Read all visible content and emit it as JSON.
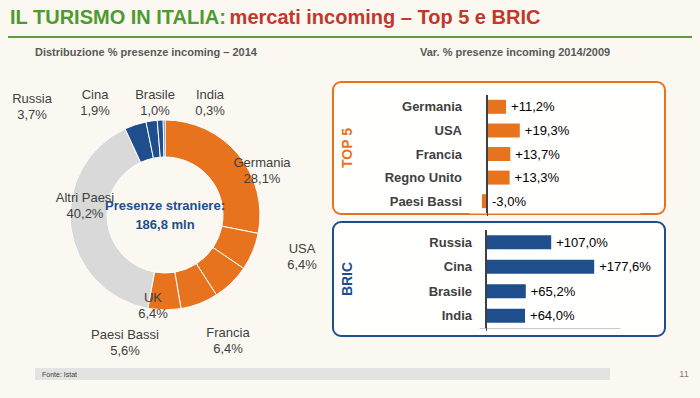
{
  "title": "IL TURISMO IN ITALIA:",
  "subtitle": "mercati incoming – Top 5 e BRIC",
  "source": "Fonte: Istat",
  "page_number": 11,
  "chart_data": [
    {
      "type": "pie",
      "title": "Distribuzione % presenze incoming – 2014",
      "center_label": [
        "Presenze straniere:",
        "186,8 mln"
      ],
      "categories": [
        "Germania",
        "USA",
        "Francia",
        "UK",
        "Paesi Bassi",
        "Altri Paesi",
        "Russia",
        "Cina",
        "Brasile",
        "India"
      ],
      "values": [
        28.1,
        6.4,
        6.4,
        6.4,
        5.6,
        40.2,
        3.7,
        1.9,
        1.0,
        0.3
      ],
      "value_labels": [
        "28,1%",
        "6,4%",
        "6,4%",
        "6,4%",
        "5,6%",
        "40,2%",
        "3,7%",
        "1,9%",
        "1,0%",
        "0,3%"
      ],
      "colors": [
        "#E8731F",
        "#E8731F",
        "#E8731F",
        "#E8731F",
        "#E8731F",
        "#D9D9D9",
        "#1F4E8C",
        "#1F4E8C",
        "#1F4E8C",
        "#1F4E8C"
      ],
      "data_labels": true
    },
    {
      "type": "bar",
      "orientation": "horizontal",
      "title": "TOP 5",
      "subtitle": "Var. % presenze incoming 2014/2009",
      "categories": [
        "Germania",
        "USA",
        "Francia",
        "Regno Unito",
        "Paesi Bassi"
      ],
      "values": [
        11.2,
        19.3,
        13.7,
        13.3,
        -3.0
      ],
      "value_labels": [
        "+11,2%",
        "+19,3%",
        "+13,7%",
        "+13,3%",
        "-3,0%"
      ],
      "color": "#E8731F",
      "xlim": [
        -10,
        90
      ],
      "xticks": [
        0
      ],
      "grid": false,
      "data_labels": true,
      "tick_labels": "y"
    },
    {
      "type": "bar",
      "orientation": "horizontal",
      "title": "BRIC",
      "categories": [
        "Russia",
        "Cina",
        "Brasile",
        "India"
      ],
      "values": [
        107.0,
        177.6,
        65.2,
        64.0
      ],
      "value_labels": [
        "+107,0%",
        "+177,6%",
        "+65,2%",
        "+64,0%"
      ],
      "color": "#1F4E8C",
      "xlim": [
        -10,
        220
      ],
      "xticks": [
        0
      ],
      "grid": false,
      "data_labels": true,
      "tick_labels": "y"
    }
  ]
}
